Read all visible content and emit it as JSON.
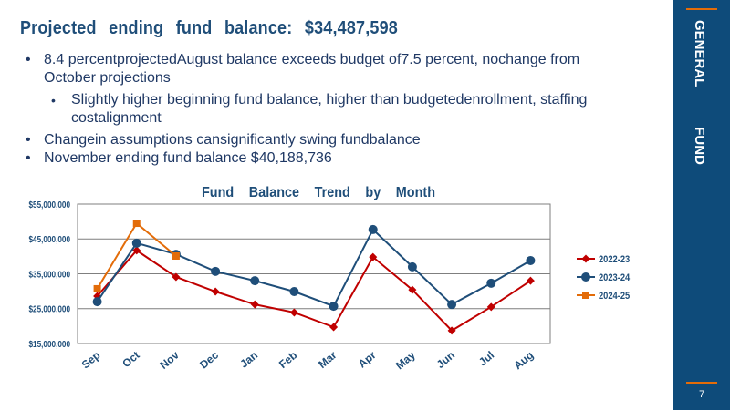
{
  "header": {
    "title": "Projected ending fund balance: $34,487,598"
  },
  "bullets": [
    {
      "text": "8.4 percentprojectedAugust balance exceeds budget of7.5 percent, nochange from October projections",
      "sub": [
        "Slightly higher beginning fund balance, higher than budgetedenrollment, staffing costalignment"
      ]
    },
    {
      "text": "Changein assumptions cansignificantly swing fundbalance"
    },
    {
      "text": "November ending fund balance $40,188,736"
    }
  ],
  "sidebar": {
    "label": "GENERAL FUND",
    "page_number": "7"
  },
  "chart_data": {
    "type": "line",
    "title": "Fund Balance Trend by Month",
    "categories": [
      "Sep",
      "Oct",
      "Nov",
      "Dec",
      "Jan",
      "Feb",
      "Mar",
      "Apr",
      "May",
      "Jun",
      "Jul",
      "Aug"
    ],
    "series": [
      {
        "name": "2022-23",
        "color": "#c00000",
        "marker": "diamond",
        "values": [
          28600000,
          41700000,
          34100000,
          29900000,
          26200000,
          23900000,
          19700000,
          39800000,
          30400000,
          18700000,
          25500000,
          33000000
        ]
      },
      {
        "name": "2023-24",
        "color": "#1f4e79",
        "marker": "circle",
        "values": [
          27000000,
          43800000,
          40600000,
          35700000,
          33000000,
          29900000,
          25700000,
          47700000,
          37000000,
          26200000,
          32300000,
          38800000
        ]
      },
      {
        "name": "2024-25",
        "color": "#e36c09",
        "marker": "square",
        "values": [
          30700000,
          49500000,
          40100000,
          null,
          null,
          null,
          null,
          null,
          null,
          null,
          null,
          null
        ]
      }
    ],
    "ylim": [
      15000000,
      55000000
    ],
    "yticks": [
      {
        "value": 15000000,
        "label": "$15,000,000"
      },
      {
        "value": 25000000,
        "label": "$25,000,000"
      },
      {
        "value": 35000000,
        "label": "$35,000,000"
      },
      {
        "value": 45000000,
        "label": "$45,000,000"
      },
      {
        "value": 55000000,
        "label": "$55,000,000"
      }
    ],
    "grid": true,
    "legend": "right"
  }
}
